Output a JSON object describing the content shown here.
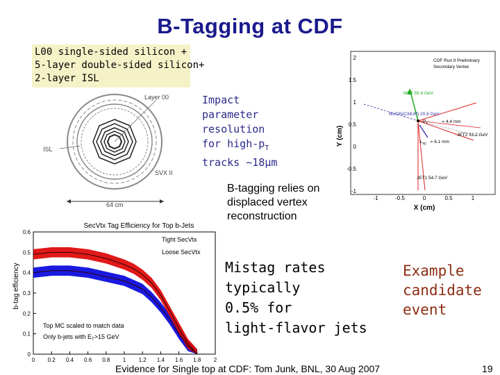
{
  "slide": {
    "title": "B-Tagging at CDF",
    "silicon_lines": [
      "L00 single-sided silicon +",
      "5-layer double-sided silicon+",
      "2-layer ISL"
    ],
    "impact": {
      "lines": [
        "Impact",
        "parameter",
        "resolution",
        "for high-p",
        "tracks ~18"
      ],
      "sub_t": "T",
      "mu_unit": "μm"
    },
    "relies_lines": [
      "B-tagging relies on",
      "displaced vertex",
      "reconstruction"
    ],
    "mistag_lines": [
      "Mistag rates",
      "typically",
      "0.5% for",
      "light-flavor jets"
    ],
    "example_lines": [
      "Example",
      "candidate",
      "event"
    ],
    "footer": "Evidence for Single top at CDF: Tom Junk, BNL, 30 Aug 2007",
    "page_number": "19"
  },
  "detector": {
    "layer00_label": "Layer 00",
    "isl_label": "ISL",
    "svx_label": "SVX II",
    "scale_label": "64 cm"
  },
  "event_display": {
    "header1": "CDF Run II Preliminary",
    "header2": "Secondary Vertex",
    "xlabel": "X (cm)",
    "ylabel": "Y (cm)",
    "xticks": [
      "-1",
      "-0.5",
      "0",
      "0.5",
      "1"
    ],
    "yticks": [
      "2",
      "1.5",
      "1",
      "0.5",
      "0",
      "-0.5",
      "-1"
    ],
    "met_label": "MET 55.4 GeV",
    "muon_label": "MUON(CMUP) 20.8 GeV",
    "jet2_label": "JET2 33.2 GeV",
    "jet1_label": "JET1 54.7 GeV",
    "pt_label": "P",
    "pt_sub": "T",
    "pt_val": "= 4.4 mm",
    "lxy_label": "L",
    "lxy_sub": "xy",
    "lxy_val": "= 6.1 mm"
  },
  "chart_data": {
    "type": "line",
    "title": "SecVtx Tag Efficiency for Top b-Jets",
    "xlabel": "",
    "ylabel": "b-tag efficiency",
    "xlim": [
      0,
      2
    ],
    "ylim": [
      0,
      0.6
    ],
    "x_ticks": [
      "0",
      "0.2",
      "0.4",
      "0.6",
      "0.8",
      "1",
      "1.2",
      "1.4",
      "1.6",
      "1.8",
      "2"
    ],
    "y_ticks": [
      "0",
      "0.1",
      "0.2",
      "0.3",
      "0.4",
      "0.5",
      "0.6"
    ],
    "x": [
      0.0,
      0.2,
      0.4,
      0.6,
      0.8,
      1.0,
      1.1,
      1.2,
      1.3,
      1.4,
      1.5,
      1.6,
      1.7,
      1.8
    ],
    "series": [
      {
        "name": "Tight SecVtx",
        "color": "#0000dd",
        "values": [
          0.4,
          0.41,
          0.41,
          0.4,
          0.38,
          0.36,
          0.34,
          0.32,
          0.28,
          0.23,
          0.17,
          0.1,
          0.04,
          0.0
        ],
        "band": 0.025
      },
      {
        "name": "Loose SecVtx",
        "color": "#dd0000",
        "values": [
          0.49,
          0.5,
          0.5,
          0.49,
          0.47,
          0.44,
          0.42,
          0.39,
          0.35,
          0.29,
          0.21,
          0.13,
          0.05,
          0.0
        ],
        "band": 0.025
      }
    ],
    "annotations": [
      "Top MC scaled to match data",
      "Only b-jets with E",
      "T",
      ">15 GeV"
    ]
  }
}
